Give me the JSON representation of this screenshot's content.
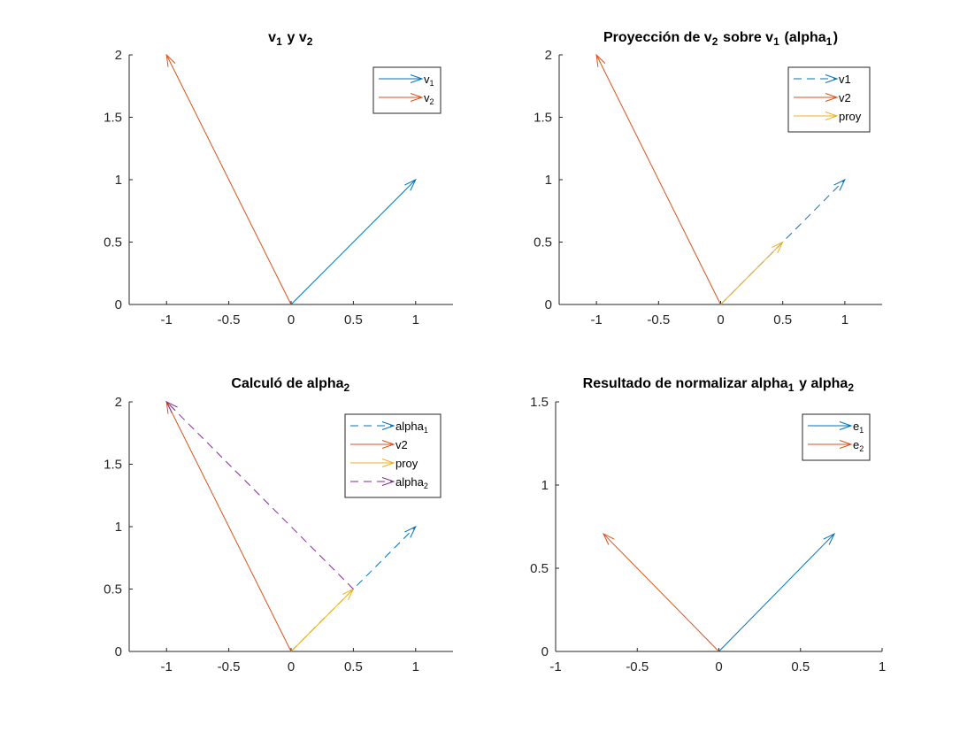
{
  "figure": {
    "background": "#ffffff",
    "colors": {
      "blue": "#0072BD",
      "orange": "#D95319",
      "yellow": "#EDB120",
      "purple": "#7E2F8E"
    }
  },
  "chart_data": [
    {
      "type": "quiver",
      "title": {
        "base": "v",
        "parts": [
          [
            "v",
            "1",
            " y v",
            "2",
            ""
          ]
        ]
      },
      "title_text": "v_1 y v_2",
      "xlim": [
        -1.3,
        1.3
      ],
      "ylim": [
        0,
        2
      ],
      "xticks": [
        -1,
        -0.5,
        0,
        0.5,
        1
      ],
      "xtick_labels": [
        "-1",
        "-0.5",
        "0",
        "0.5",
        "1"
      ],
      "yticks": [
        0,
        0.5,
        1,
        1.5,
        2
      ],
      "ytick_labels": [
        "0",
        "0.5",
        "1",
        "1.5",
        "2"
      ],
      "legend_location": "top-right",
      "series": [
        {
          "name": "v",
          "name_sub": "1",
          "color": "#0072BD",
          "dashed": false,
          "x0": 0,
          "y0": 0,
          "x1": 1,
          "y1": 1
        },
        {
          "name": "v",
          "name_sub": "2",
          "color": "#D95319",
          "dashed": false,
          "x0": 0,
          "y0": 0,
          "x1": -1,
          "y1": 2
        }
      ]
    },
    {
      "type": "quiver",
      "title_text": "Proyección de v_2 sobre v_1 (alpha_1)",
      "xlim": [
        -1.3,
        1.3
      ],
      "ylim": [
        0,
        2
      ],
      "xticks": [
        -1,
        -0.5,
        0,
        0.5,
        1
      ],
      "xtick_labels": [
        "-1",
        "-0.5",
        "0",
        "0.5",
        "1"
      ],
      "yticks": [
        0,
        0.5,
        1,
        1.5,
        2
      ],
      "ytick_labels": [
        "0",
        "0.5",
        "1",
        "1.5",
        "2"
      ],
      "legend_location": "top-right",
      "series": [
        {
          "name": "v1",
          "name_sub": "",
          "color": "#0072BD",
          "dashed": true,
          "x0": 0,
          "y0": 0,
          "x1": 1,
          "y1": 1
        },
        {
          "name": "v2",
          "name_sub": "",
          "color": "#D95319",
          "dashed": false,
          "x0": 0,
          "y0": 0,
          "x1": -1,
          "y1": 2
        },
        {
          "name": "proy",
          "name_sub": "",
          "color": "#EDB120",
          "dashed": false,
          "x0": 0,
          "y0": 0,
          "x1": 0.5,
          "y1": 0.5
        }
      ]
    },
    {
      "type": "quiver",
      "title_text": "Calculó de alpha_2",
      "xlim": [
        -1.3,
        1.3
      ],
      "ylim": [
        0,
        2
      ],
      "xticks": [
        -1,
        -0.5,
        0,
        0.5,
        1
      ],
      "xtick_labels": [
        "-1",
        "-0.5",
        "0",
        "0.5",
        "1"
      ],
      "yticks": [
        0,
        0.5,
        1,
        1.5,
        2
      ],
      "ytick_labels": [
        "0",
        "0.5",
        "1",
        "1.5",
        "2"
      ],
      "legend_location": "top-right",
      "series": [
        {
          "name": "alpha",
          "name_sub": "1",
          "color": "#0072BD",
          "dashed": true,
          "x0": 0,
          "y0": 0,
          "x1": 1,
          "y1": 1
        },
        {
          "name": "v2",
          "name_sub": "",
          "color": "#D95319",
          "dashed": false,
          "x0": 0,
          "y0": 0,
          "x1": -1,
          "y1": 2
        },
        {
          "name": "proy",
          "name_sub": "",
          "color": "#EDB120",
          "dashed": false,
          "x0": 0,
          "y0": 0,
          "x1": 0.5,
          "y1": 0.5
        },
        {
          "name": "alpha",
          "name_sub": "2",
          "color": "#7E2F8E",
          "dashed": true,
          "x0": 0.5,
          "y0": 0.5,
          "x1": -1,
          "y1": 2
        }
      ]
    },
    {
      "type": "quiver",
      "title_text": "Resultado de normalizar alpha_1 y alpha_2",
      "xlim": [
        -1,
        1
      ],
      "ylim": [
        0,
        1.5
      ],
      "xticks": [
        -1,
        -0.5,
        0,
        0.5,
        1
      ],
      "xtick_labels": [
        "-1",
        "-0.5",
        "0",
        "0.5",
        "1"
      ],
      "yticks": [
        0,
        0.5,
        1,
        1.5
      ],
      "ytick_labels": [
        "0",
        "0.5",
        "1",
        "1.5"
      ],
      "legend_location": "top-right",
      "series": [
        {
          "name": "e",
          "name_sub": "1",
          "color": "#0072BD",
          "dashed": false,
          "x0": 0,
          "y0": 0,
          "x1": 0.7071,
          "y1": 0.7071
        },
        {
          "name": "e",
          "name_sub": "2",
          "color": "#D95319",
          "dashed": false,
          "x0": 0,
          "y0": 0,
          "x1": -0.7071,
          "y1": 0.7071
        }
      ]
    }
  ]
}
